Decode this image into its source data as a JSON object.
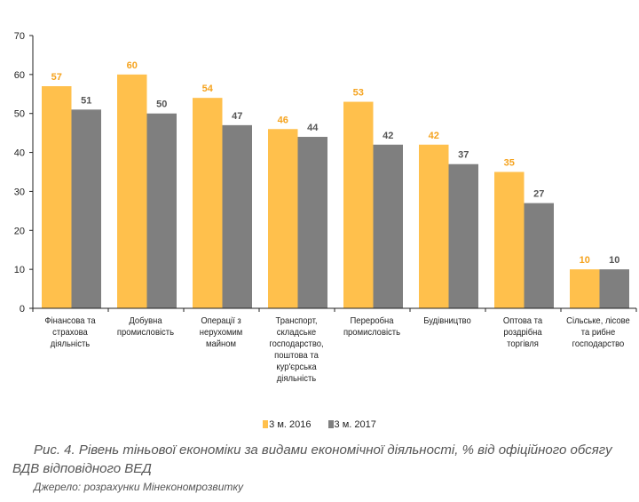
{
  "chart_data": {
    "type": "bar",
    "categories": [
      [
        "Фінансова та",
        "страхова",
        "діяльність"
      ],
      [
        "Добувна",
        "промисловість"
      ],
      [
        "Операції з",
        "нерухомим",
        "майном"
      ],
      [
        "Транспорт,",
        "складське",
        "господарство,",
        "поштова та",
        "кур'єрська",
        "діяльність"
      ],
      [
        "Переробна",
        "промисловість"
      ],
      [
        "Будівництво"
      ],
      [
        "Оптова та",
        "роздрібна",
        "торгівля"
      ],
      [
        "Сільське, лісове",
        "та рибне",
        "господарство"
      ]
    ],
    "series": [
      {
        "name": "3 м. 2016",
        "color": "#FFC04C",
        "label_color": "#F5A31E",
        "values": [
          57,
          60,
          54,
          46,
          53,
          42,
          35,
          10
        ]
      },
      {
        "name": "3 м. 2017",
        "color": "#7F7F7F",
        "label_color": "#555555",
        "values": [
          51,
          50,
          47,
          44,
          42,
          37,
          27,
          10
        ]
      }
    ],
    "ylim": [
      0,
      70
    ],
    "yticks": [
      0,
      10,
      20,
      30,
      40,
      50,
      60,
      70
    ],
    "legend": "bottom-center",
    "title": "Рис. 4. Рівень тіньової економіки за видами економічної діяльності, % від офіційного обсягу ВДВ відповідного ВЕД",
    "source": "Джерело: розрахунки Мінекономрозвитку"
  }
}
